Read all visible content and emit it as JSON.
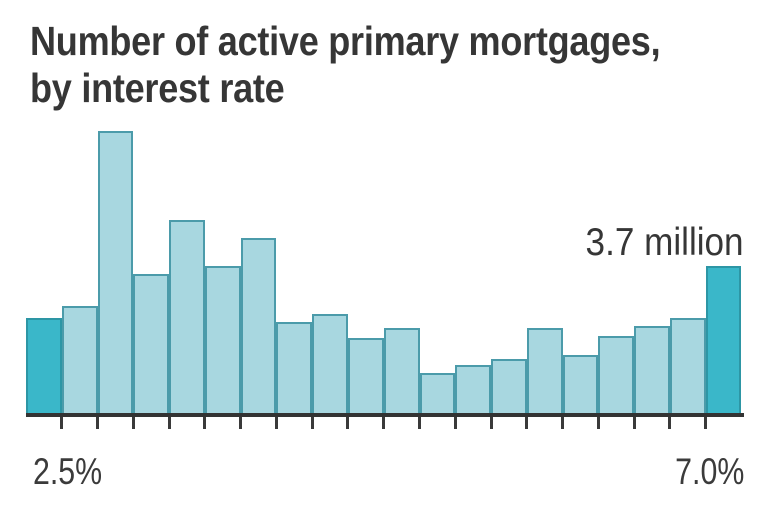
{
  "title": {
    "line1": "Number of active primary mortgages,",
    "line2": "by interest rate"
  },
  "x_axis": {
    "left_label": "2.5%",
    "right_label": "7.0%"
  },
  "annotation": {
    "text": "3.7 million"
  },
  "colors": {
    "bar_fill": "#a8d7e0",
    "bar_border": "#4b9baa",
    "highlight_fill": "#3ab7c9",
    "highlight_border": "#2d96a5",
    "axis": "#333333",
    "text": "#363636"
  },
  "chart_data": {
    "type": "bar",
    "subtype": "histogram",
    "title": "Number of active primary mortgages, by interest rate",
    "unit": "millions of mortgages",
    "categories": [
      "<2.5%",
      "2.5-2.75%",
      "2.75-3.0%",
      "3.0-3.25%",
      "3.25-3.5%",
      "3.5-3.75%",
      "3.75-4.0%",
      "4.0-4.25%",
      "4.25-4.5%",
      "4.5-4.75%",
      "4.75-5.0%",
      "5.0-5.25%",
      "5.25-5.5%",
      "5.5-5.75%",
      "5.75-6.0%",
      "6.0-6.25%",
      "6.25-6.5%",
      "6.5-6.75%",
      "6.75-7.0%",
      ">=7.0%"
    ],
    "values": [
      2.4,
      2.7,
      7.05,
      3.5,
      4.85,
      3.7,
      4.4,
      2.3,
      2.5,
      1.9,
      2.15,
      1.05,
      1.25,
      1.4,
      2.15,
      1.5,
      1.95,
      2.2,
      2.4,
      3.7
    ],
    "highlighted_bins": [
      0,
      19
    ],
    "annotation": {
      "bin_index": 19,
      "value": 3.7,
      "text": "3.7 million"
    },
    "x_tick_labels_shown": [
      "2.5%",
      "7.0%"
    ],
    "xlabel": "",
    "ylabel": "",
    "grid": false,
    "legend": false,
    "y_axis_shown": false
  }
}
